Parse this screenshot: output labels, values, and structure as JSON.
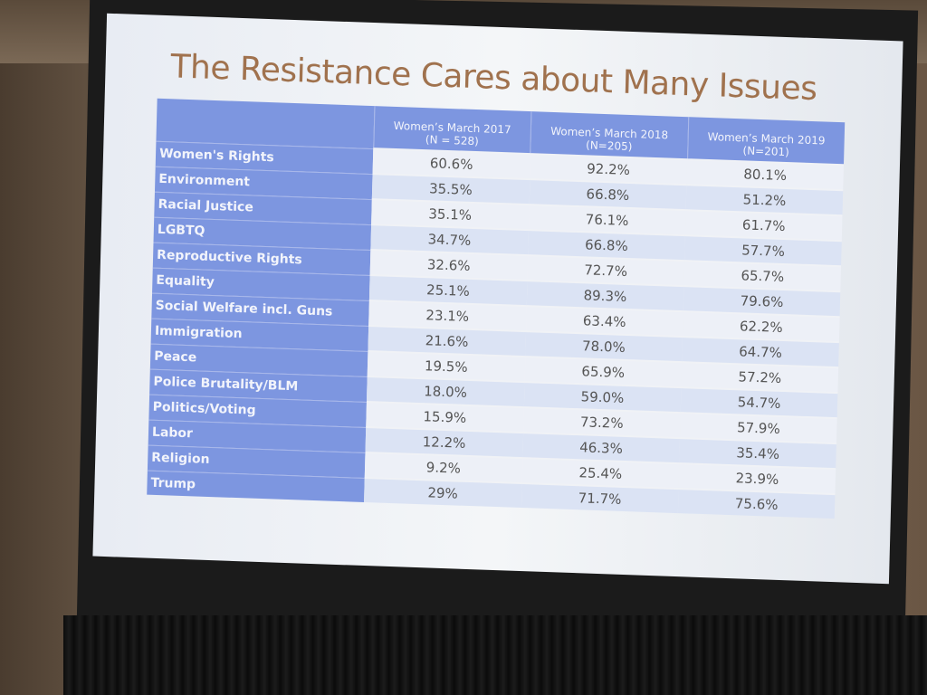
{
  "slide": {
    "title": "The Resistance Cares about Many Issues",
    "table": {
      "headers": [
        {
          "lines": [
            "Women’s March 2017",
            "(N = 528)"
          ]
        },
        {
          "lines": [
            "Women’s March 2018",
            "(N=205)"
          ]
        },
        {
          "lines": [
            "Women’s March 2019",
            "(N=201)"
          ]
        }
      ],
      "rows": [
        [
          "Women's Rights",
          "60.6%",
          "92.2%",
          "80.1%"
        ],
        [
          "Environment",
          "35.5%",
          "66.8%",
          "51.2%"
        ],
        [
          "Racial Justice",
          "35.1%",
          "76.1%",
          "61.7%"
        ],
        [
          "LGBTQ",
          "34.7%",
          "66.8%",
          "57.7%"
        ],
        [
          "Reproductive Rights",
          "32.6%",
          "72.7%",
          "65.7%"
        ],
        [
          "Equality",
          "25.1%",
          "89.3%",
          "79.6%"
        ],
        [
          "Social Welfare incl. Guns",
          "23.1%",
          "63.4%",
          "62.2%"
        ],
        [
          "Immigration",
          "21.6%",
          "78.0%",
          "64.7%"
        ],
        [
          "Peace",
          "19.5%",
          "65.9%",
          "57.2%"
        ],
        [
          "Police Brutality/BLM",
          "18.0%",
          "59.0%",
          "54.7%"
        ],
        [
          "Politics/Voting",
          "15.9%",
          "73.2%",
          "57.9%"
        ],
        [
          "Labor",
          "12.2%",
          "46.3%",
          "35.4%"
        ],
        [
          "Religion",
          "9.2%",
          "25.4%",
          "23.9%"
        ],
        [
          "Trump",
          "29%",
          "71.7%",
          "75.6%"
        ]
      ]
    }
  }
}
